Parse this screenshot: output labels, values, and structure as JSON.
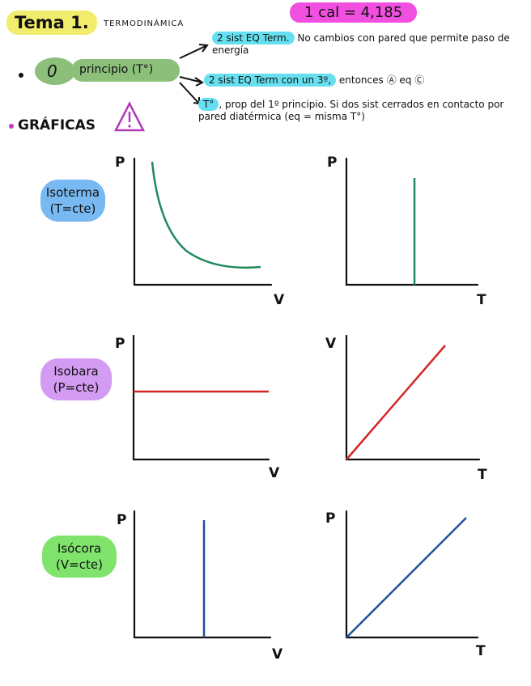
{
  "header": {
    "title": "Tema 1.",
    "subtitle": "TERMODINÁMICA",
    "badge": "1 cal = 4,185"
  },
  "principle": {
    "number": "0",
    "name": "principio (T°)",
    "notes": [
      {
        "highlight": "2 sist EQ Term.",
        "text": "No cambios con pared que permite paso de energía"
      },
      {
        "highlight": "2 sist EQ Term con un 3º,",
        "text": "entonces Ⓐ eq Ⓒ"
      },
      {
        "highlight": "T°",
        "text": ", prop del 1º principio. Si dos sist cerrados en contacto por pared diatérmica (eq = misma T°)"
      }
    ]
  },
  "section": "GRÁFICAS",
  "graphs": [
    {
      "name": "Isoterma",
      "condition": "(T=cte)",
      "plots": [
        {
          "y": "P",
          "x": "V"
        },
        {
          "y": "P",
          "x": "T"
        }
      ]
    },
    {
      "name": "Isobara",
      "condition": "(P=cte)",
      "plots": [
        {
          "y": "P",
          "x": "V"
        },
        {
          "y": "V",
          "x": "T"
        }
      ]
    },
    {
      "name": "Isócora",
      "condition": "(V=cte)",
      "plots": [
        {
          "y": "P",
          "x": "V"
        },
        {
          "y": "P",
          "x": "T"
        }
      ]
    }
  ]
}
